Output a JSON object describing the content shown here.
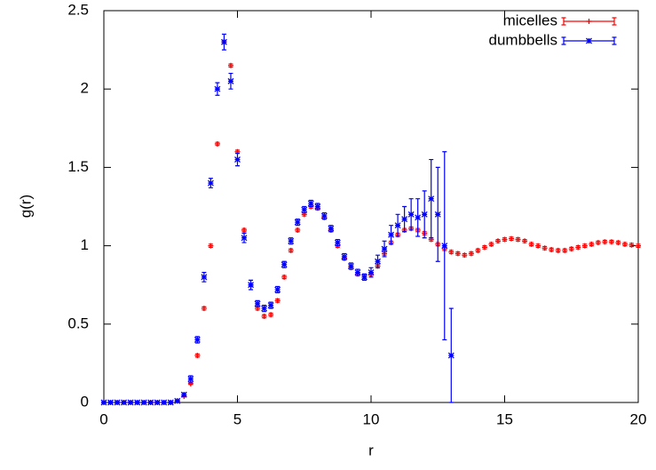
{
  "chart_data": {
    "type": "scatter",
    "xlabel": "r",
    "ylabel": "g(r)",
    "xlim": [
      0,
      20
    ],
    "ylim": [
      0,
      2.5
    ],
    "xticks": [
      0,
      5,
      10,
      15,
      20
    ],
    "yticks": [
      0,
      0.5,
      1,
      1.5,
      2,
      2.5
    ],
    "legend": "top-right",
    "series": [
      {
        "name": "micelles",
        "color": "#ff0000",
        "marker": "plus",
        "x": [
          0,
          0.25,
          0.5,
          0.75,
          1,
          1.25,
          1.5,
          1.75,
          2,
          2.25,
          2.5,
          2.75,
          3,
          3.25,
          3.5,
          3.75,
          4,
          4.25,
          4.5,
          4.75,
          5,
          5.25,
          5.5,
          5.75,
          6,
          6.25,
          6.5,
          6.75,
          7,
          7.25,
          7.5,
          7.75,
          8,
          8.25,
          8.5,
          8.75,
          9,
          9.25,
          9.5,
          9.75,
          10,
          10.25,
          10.5,
          10.75,
          11,
          11.25,
          11.5,
          11.75,
          12,
          12.25,
          12.5,
          12.75,
          13,
          13.25,
          13.5,
          13.75,
          14,
          14.25,
          14.5,
          14.75,
          15,
          15.25,
          15.5,
          15.75,
          16,
          16.25,
          16.5,
          16.75,
          17,
          17.25,
          17.5,
          17.75,
          18,
          18.25,
          18.5,
          18.75,
          19,
          19.25,
          19.5,
          19.75,
          20
        ],
        "values": [
          0,
          0,
          0,
          0,
          0,
          0,
          0,
          0,
          0,
          0,
          0,
          0.01,
          0.04,
          0.12,
          0.3,
          0.6,
          1.0,
          1.65,
          2.3,
          2.15,
          1.6,
          1.1,
          0.75,
          0.6,
          0.55,
          0.56,
          0.65,
          0.8,
          0.97,
          1.1,
          1.2,
          1.25,
          1.24,
          1.18,
          1.1,
          1.0,
          0.92,
          0.86,
          0.82,
          0.8,
          0.82,
          0.87,
          0.95,
          1.02,
          1.07,
          1.1,
          1.11,
          1.1,
          1.08,
          1.04,
          1.01,
          0.98,
          0.96,
          0.95,
          0.94,
          0.95,
          0.97,
          0.99,
          1.01,
          1.03,
          1.04,
          1.045,
          1.04,
          1.03,
          1.01,
          1.0,
          0.985,
          0.975,
          0.97,
          0.97,
          0.98,
          0.99,
          1.0,
          1.01,
          1.02,
          1.025,
          1.025,
          1.02,
          1.01,
          1.005,
          1.0
        ],
        "errors": [
          0.005,
          0.005,
          0.005,
          0.005,
          0.005,
          0.005,
          0.005,
          0.005,
          0.005,
          0.005,
          0.005,
          0.005,
          0.005,
          0.005,
          0.01,
          0.01,
          0.01,
          0.01,
          0.01,
          0.01,
          0.01,
          0.01,
          0.01,
          0.01,
          0.01,
          0.01,
          0.01,
          0.01,
          0.01,
          0.01,
          0.01,
          0.01,
          0.01,
          0.01,
          0.01,
          0.01,
          0.01,
          0.01,
          0.01,
          0.01,
          0.01,
          0.01,
          0.01,
          0.01,
          0.01,
          0.01,
          0.01,
          0.01,
          0.01,
          0.01,
          0.01,
          0.01,
          0.01,
          0.01,
          0.01,
          0.01,
          0.01,
          0.01,
          0.01,
          0.01,
          0.01,
          0.01,
          0.01,
          0.01,
          0.01,
          0.01,
          0.01,
          0.01,
          0.01,
          0.01,
          0.01,
          0.01,
          0.01,
          0.01,
          0.01,
          0.01,
          0.01,
          0.01,
          0.01,
          0.01,
          0.01
        ]
      },
      {
        "name": "dumbbells",
        "color": "#0000ff",
        "marker": "star",
        "x": [
          0,
          0.25,
          0.5,
          0.75,
          1,
          1.25,
          1.5,
          1.75,
          2,
          2.25,
          2.5,
          2.75,
          3,
          3.25,
          3.5,
          3.75,
          4,
          4.25,
          4.5,
          4.75,
          5,
          5.25,
          5.5,
          5.75,
          6,
          6.25,
          6.5,
          6.75,
          7,
          7.25,
          7.5,
          7.75,
          8,
          8.25,
          8.5,
          8.75,
          9,
          9.25,
          9.5,
          9.75,
          10,
          10.25,
          10.5,
          10.75,
          11,
          11.25,
          11.5,
          11.75,
          12,
          12.25,
          12.5,
          12.75,
          13
        ],
        "values": [
          0,
          0,
          0,
          0,
          0,
          0,
          0,
          0,
          0,
          0,
          0,
          0.01,
          0.05,
          0.15,
          0.4,
          0.8,
          1.4,
          2.0,
          2.3,
          2.05,
          1.55,
          1.05,
          0.75,
          0.63,
          0.6,
          0.62,
          0.72,
          0.88,
          1.03,
          1.15,
          1.23,
          1.27,
          1.25,
          1.19,
          1.11,
          1.02,
          0.93,
          0.87,
          0.83,
          0.8,
          0.83,
          0.9,
          0.98,
          1.07,
          1.13,
          1.17,
          1.2,
          1.18,
          1.2,
          1.3,
          1.2,
          1.0,
          0.3
        ],
        "errors": [
          0.005,
          0.005,
          0.005,
          0.005,
          0.005,
          0.005,
          0.005,
          0.005,
          0.005,
          0.005,
          0.005,
          0.005,
          0.01,
          0.02,
          0.02,
          0.03,
          0.03,
          0.04,
          0.05,
          0.05,
          0.04,
          0.03,
          0.03,
          0.02,
          0.02,
          0.02,
          0.02,
          0.02,
          0.02,
          0.02,
          0.02,
          0.02,
          0.02,
          0.02,
          0.02,
          0.02,
          0.02,
          0.02,
          0.02,
          0.02,
          0.03,
          0.04,
          0.05,
          0.06,
          0.07,
          0.08,
          0.1,
          0.12,
          0.15,
          0.25,
          0.3,
          0.6,
          0.3
        ]
      }
    ]
  }
}
